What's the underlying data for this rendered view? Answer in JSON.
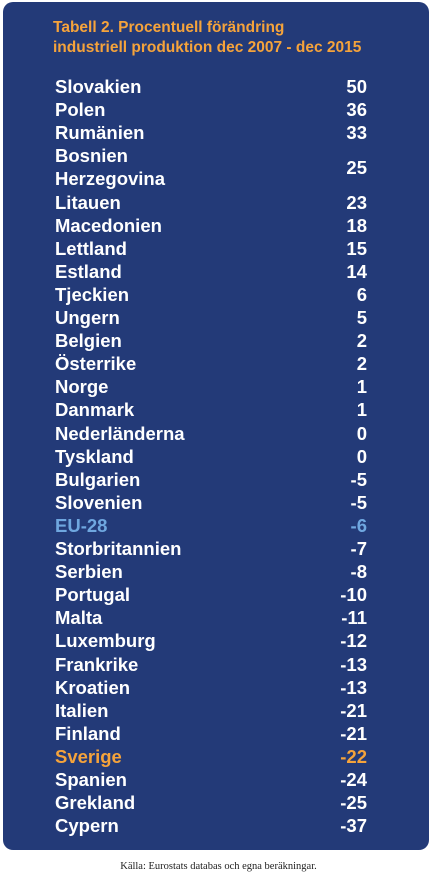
{
  "chart_data": {
    "type": "table",
    "title_lines": [
      "Tabell 2. Procentuell förändring",
      "industriell produktion dec 2007 - dec 2015"
    ],
    "rows": [
      {
        "country": "Slovakien",
        "value": 50
      },
      {
        "country": "Polen",
        "value": 36
      },
      {
        "country": "Rumänien",
        "value": 33
      },
      {
        "country_lines": [
          "Bosnien",
          "Herzegovina"
        ],
        "value": 25
      },
      {
        "country": "Litauen",
        "value": 23
      },
      {
        "country": "Macedonien",
        "value": 18
      },
      {
        "country": "Lettland",
        "value": 15
      },
      {
        "country": "Estland",
        "value": 14
      },
      {
        "country": "Tjeckien",
        "value": 6
      },
      {
        "country": "Ungern",
        "value": 5
      },
      {
        "country": "Belgien",
        "value": 2
      },
      {
        "country": "Österrike",
        "value": 2
      },
      {
        "country": "Norge",
        "value": 1
      },
      {
        "country": "Danmark",
        "value": 1
      },
      {
        "country": "Nederländerna",
        "value": 0
      },
      {
        "country": "Tyskland",
        "value": 0
      },
      {
        "country": "Bulgarien",
        "value": -5
      },
      {
        "country": "Slovenien",
        "value": -5
      },
      {
        "country": "EU-28",
        "value": -6,
        "highlight": "eu"
      },
      {
        "country": "Storbritannien",
        "value": -7
      },
      {
        "country": "Serbien",
        "value": -8
      },
      {
        "country": "Portugal",
        "value": -10
      },
      {
        "country": "Malta",
        "value": -11
      },
      {
        "country": "Luxemburg",
        "value": -12
      },
      {
        "country": "Frankrike",
        "value": -13
      },
      {
        "country": "Kroatien",
        "value": -13
      },
      {
        "country": "Italien",
        "value": -21
      },
      {
        "country": "Finland",
        "value": -21
      },
      {
        "country": "Sverige",
        "value": -22,
        "highlight": "se"
      },
      {
        "country": "Spanien",
        "value": -24
      },
      {
        "country": "Grekland",
        "value": -25
      },
      {
        "country": "Cypern",
        "value": -37
      }
    ],
    "source": "Källa: Eurostats databas och egna beräkningar."
  },
  "colors": {
    "panel_background": "#233a78",
    "title": "#f5a33b",
    "text": "#ffffff",
    "eu_highlight": "#6fa7e0",
    "sweden_highlight": "#f5a33b"
  }
}
